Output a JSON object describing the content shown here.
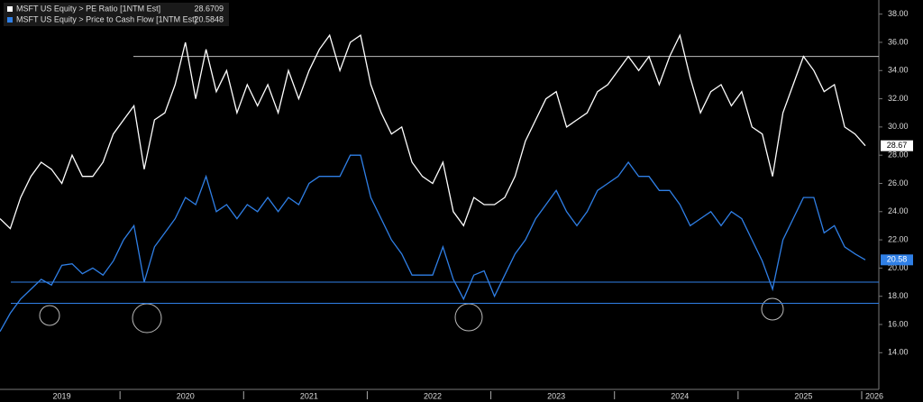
{
  "chart_data": {
    "type": "line",
    "categories": [
      null,
      null,
      null,
      null,
      null,
      null,
      "2019",
      null,
      null,
      null,
      null,
      null,
      null,
      null,
      null,
      null,
      null,
      null,
      "2020",
      null,
      null,
      null,
      null,
      null,
      null,
      null,
      null,
      null,
      null,
      null,
      "2021",
      null,
      null,
      null,
      null,
      null,
      null,
      null,
      null,
      null,
      null,
      null,
      "2022",
      null,
      null,
      null,
      null,
      null,
      null,
      null,
      null,
      null,
      null,
      null,
      "2023",
      null,
      null,
      null,
      null,
      null,
      null,
      null,
      null,
      null,
      null,
      null,
      "2024",
      null,
      null,
      null,
      null,
      null,
      null,
      null,
      null,
      null,
      null,
      null,
      "2025",
      null,
      null,
      null,
      null,
      null,
      "2026"
    ],
    "series": [
      {
        "name": "MSFT US Equity > PE Ratio [1NTM Est]",
        "color": "#ffffff",
        "legend_value": 28.6709,
        "last_label": "28.67",
        "values": [
          23.5,
          22.8,
          25,
          26.5,
          27.5,
          27,
          26,
          28,
          26.5,
          26.5,
          27.5,
          29.5,
          30.5,
          31.5,
          27,
          30.5,
          31,
          33,
          36,
          32,
          35.5,
          32.5,
          34,
          31,
          33,
          31.5,
          33,
          31,
          34,
          32,
          34,
          35.5,
          36.5,
          34,
          36,
          36.5,
          33,
          31,
          29.5,
          30,
          27.5,
          26.5,
          26,
          27.5,
          24,
          23,
          25,
          24.5,
          24.5,
          25,
          26.5,
          29,
          30.5,
          32,
          32.5,
          30,
          30.5,
          31,
          32.5,
          33,
          34,
          35,
          34,
          35,
          33,
          35,
          36.5,
          33.5,
          31,
          32.5,
          33,
          31.5,
          32.5,
          30,
          29.5,
          26.5,
          31,
          33,
          35,
          34,
          32.5,
          33,
          30,
          29.5,
          28.67
        ]
      },
      {
        "name": "MSFT US Equity > Price to Cash Flow [1NTM Est]",
        "color": "#2f7fe6",
        "legend_value": 20.5848,
        "last_label": "20.58",
        "values": [
          15.5,
          16.8,
          17.8,
          18.5,
          19.2,
          18.8,
          20.2,
          20.3,
          19.6,
          20,
          19.5,
          20.5,
          22,
          23,
          19,
          21.5,
          22.5,
          23.5,
          25,
          24.5,
          26.5,
          24,
          24.5,
          23.5,
          24.5,
          24,
          25,
          24,
          25,
          24.5,
          26,
          26.5,
          26.5,
          26.5,
          28,
          28,
          25,
          23.5,
          22,
          21,
          19.5,
          19.5,
          19.5,
          21.5,
          19.2,
          17.8,
          19.5,
          19.8,
          18,
          19.5,
          21,
          22,
          23.5,
          24.5,
          25.5,
          24,
          23,
          24,
          25.5,
          26,
          26.5,
          27.5,
          26.5,
          26.5,
          25.5,
          25.5,
          24.5,
          23,
          23.5,
          24,
          23,
          24,
          23.5,
          22,
          20.5,
          18.5,
          22,
          23.5,
          25,
          25,
          22.5,
          23,
          21.5,
          21,
          20.58
        ]
      }
    ],
    "reference_lines": [
      {
        "value": 35,
        "color": "#bbbbbb"
      },
      {
        "value": 19,
        "color": "#2f7fe6"
      },
      {
        "value": 17.5,
        "color": "#2f7fe6"
      }
    ],
    "ylim": [
      11.4,
      39
    ],
    "yticks": [
      {
        "value": 14,
        "label": "14.00"
      },
      {
        "value": 16,
        "label": "16.00"
      },
      {
        "value": 18,
        "label": "18.00"
      },
      {
        "value": 20,
        "label": "20.00"
      },
      {
        "value": 22,
        "label": "22.00"
      },
      {
        "value": 24,
        "label": "24.00"
      },
      {
        "value": 26,
        "label": "26.00"
      },
      {
        "value": 28,
        "label": "28.00"
      },
      {
        "value": 30,
        "label": "30.00"
      },
      {
        "value": 32,
        "label": "32.00"
      },
      {
        "value": 34,
        "label": "34.00"
      },
      {
        "value": 36,
        "label": "36.00"
      },
      {
        "value": 38,
        "label": "38.00"
      }
    ]
  }
}
